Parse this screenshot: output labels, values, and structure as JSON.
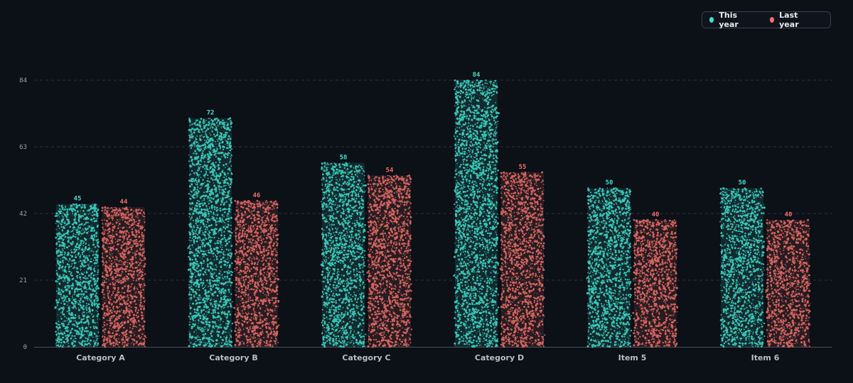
{
  "colors": {
    "this_year": "#3ee0cf",
    "last_year": "#f2706a",
    "grid": "#2c323c",
    "axis": "#4a515c"
  },
  "legend": {
    "items": [
      {
        "label": "This year",
        "color": "#3ee0cf"
      },
      {
        "label": "Last year",
        "color": "#f2706a"
      }
    ],
    "placement": "top-right"
  },
  "chart_data": {
    "type": "bar",
    "title": "",
    "xlabel": "",
    "ylabel": "",
    "categories": [
      "Category A",
      "Category B",
      "Category C",
      "Category D",
      "Item 5",
      "Item 6"
    ],
    "series": [
      {
        "name": "This year",
        "values": [
          45,
          72,
          58,
          84,
          50,
          50
        ]
      },
      {
        "name": "Last year",
        "values": [
          44,
          46,
          54,
          55,
          40,
          40
        ]
      }
    ],
    "yticks": [
      0,
      21,
      42,
      63,
      84
    ],
    "ylim": [
      0,
      84
    ],
    "grid": true,
    "data_labels": true
  }
}
